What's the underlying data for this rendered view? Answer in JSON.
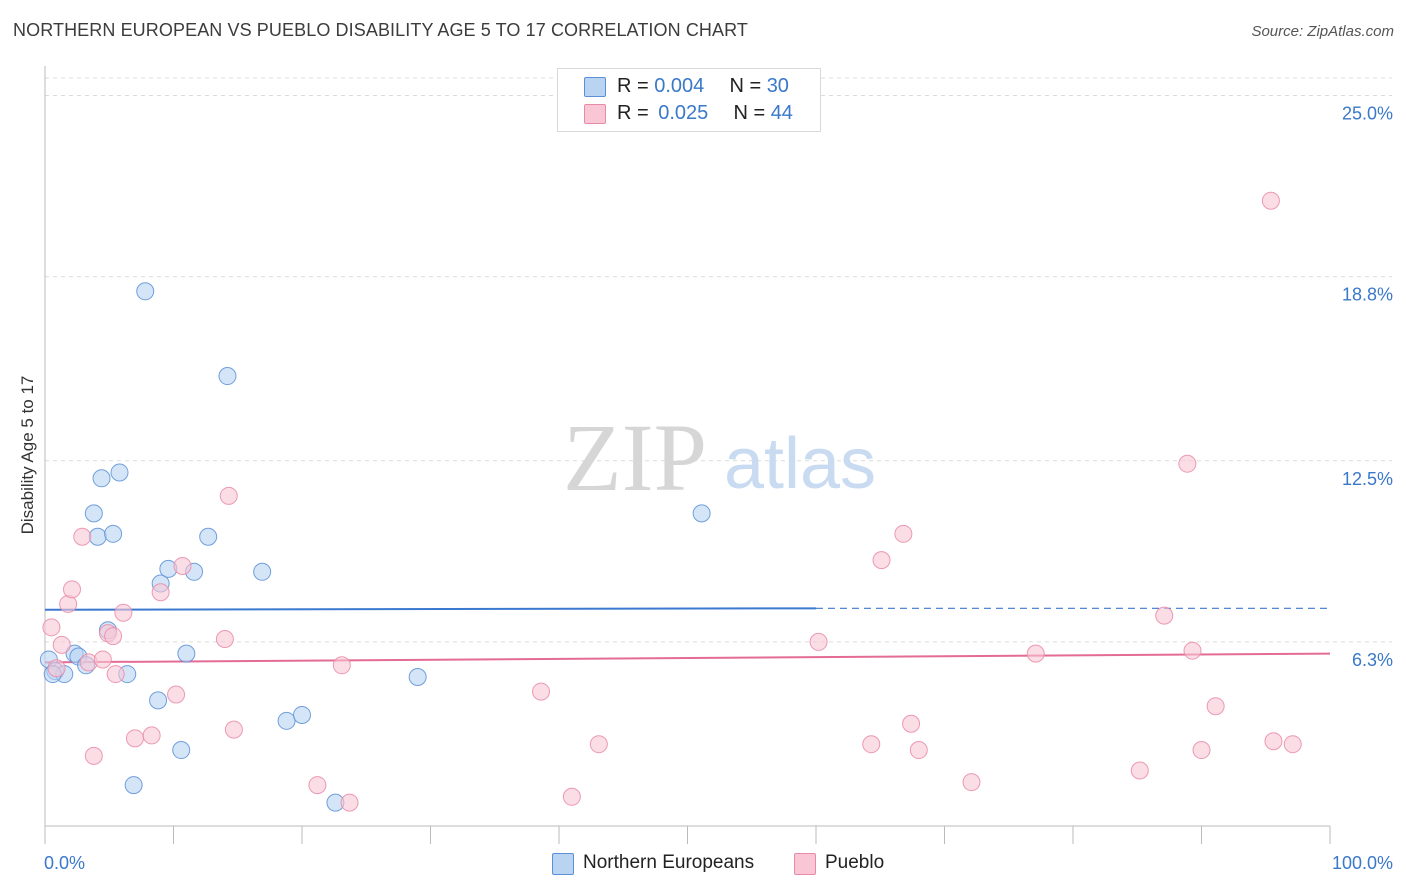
{
  "title": "NORTHERN EUROPEAN VS PUEBLO DISABILITY AGE 5 TO 17 CORRELATION CHART",
  "source": "Source: ZipAtlas.com",
  "watermark": {
    "zip": "ZIP",
    "atlas": "atlas"
  },
  "legend": {
    "rows": [
      {
        "r_label": "R =",
        "r_value": "0.004",
        "n_label": "N =",
        "n_value": "30"
      },
      {
        "r_label": "R =",
        "r_value": "0.025",
        "n_label": "N =",
        "n_value": "44"
      }
    ]
  },
  "bottom_legend": [
    "Northern Europeans",
    "Pueblo"
  ],
  "colors": {
    "blue_fill": "#b9d3f3",
    "blue_stroke": "#5b8fd6",
    "blue_line": "#3b78cf",
    "pink_fill": "#f9c6d6",
    "pink_stroke": "#e98aa8",
    "pink_line": "#e36b95",
    "tick_text": "#3a78c9",
    "grid": "#dcdcdc"
  },
  "chart_data": {
    "type": "scatter",
    "title": "NORTHERN EUROPEAN VS PUEBLO DISABILITY AGE 5 TO 17 CORRELATION CHART",
    "xlabel": "",
    "ylabel": "Disability Age 5 to 17",
    "xlim": [
      0,
      100
    ],
    "ylim": [
      0,
      25.6
    ],
    "x_tick_labels": [
      "0.0%",
      "100.0%"
    ],
    "y_ticks": [
      6.3,
      12.5,
      18.8,
      25.0
    ],
    "y_tick_labels": [
      "6.3%",
      "12.5%",
      "18.8%",
      "25.0%"
    ],
    "series": [
      {
        "name": "Northern Europeans",
        "R": 0.004,
        "N": 30,
        "trend": {
          "x0": 0,
          "y0": 7.4,
          "x1": 60,
          "y1": 7.45,
          "dashed_to_x": 100
        },
        "points": [
          [
            0.3,
            5.7
          ],
          [
            0.8,
            5.3
          ],
          [
            1.5,
            5.2
          ],
          [
            2.3,
            5.9
          ],
          [
            2.6,
            5.8
          ],
          [
            3.2,
            5.5
          ],
          [
            3.8,
            10.7
          ],
          [
            4.1,
            9.9
          ],
          [
            4.4,
            11.9
          ],
          [
            4.9,
            6.7
          ],
          [
            5.3,
            10.0
          ],
          [
            5.8,
            12.1
          ],
          [
            6.4,
            5.2
          ],
          [
            6.9,
            1.4
          ],
          [
            7.8,
            18.3
          ],
          [
            8.8,
            4.3
          ],
          [
            9.0,
            8.3
          ],
          [
            9.6,
            8.8
          ],
          [
            10.6,
            2.6
          ],
          [
            11.0,
            5.9
          ],
          [
            11.6,
            8.7
          ],
          [
            12.7,
            9.9
          ],
          [
            14.2,
            15.4
          ],
          [
            16.9,
            8.7
          ],
          [
            18.8,
            3.6
          ],
          [
            20.0,
            3.8
          ],
          [
            22.6,
            0.8
          ],
          [
            29.0,
            5.1
          ],
          [
            51.1,
            10.7
          ],
          [
            0.6,
            5.2
          ]
        ]
      },
      {
        "name": "Pueblo",
        "R": 0.025,
        "N": 44,
        "trend": {
          "x0": 0,
          "y0": 5.6,
          "x1": 100,
          "y1": 5.9
        },
        "points": [
          [
            0.5,
            6.8
          ],
          [
            0.9,
            5.4
          ],
          [
            1.3,
            6.2
          ],
          [
            1.8,
            7.6
          ],
          [
            2.1,
            8.1
          ],
          [
            2.9,
            9.9
          ],
          [
            3.4,
            5.6
          ],
          [
            3.8,
            2.4
          ],
          [
            4.5,
            5.7
          ],
          [
            4.9,
            6.6
          ],
          [
            5.3,
            6.5
          ],
          [
            5.5,
            5.2
          ],
          [
            6.1,
            7.3
          ],
          [
            7.0,
            3.0
          ],
          [
            8.3,
            3.1
          ],
          [
            9.0,
            8.0
          ],
          [
            10.2,
            4.5
          ],
          [
            10.7,
            8.9
          ],
          [
            14.0,
            6.4
          ],
          [
            14.3,
            11.3
          ],
          [
            14.7,
            3.3
          ],
          [
            21.2,
            1.4
          ],
          [
            23.1,
            5.5
          ],
          [
            23.7,
            0.8
          ],
          [
            38.6,
            4.6
          ],
          [
            41.0,
            1.0
          ],
          [
            43.1,
            2.8
          ],
          [
            60.2,
            6.3
          ],
          [
            64.3,
            2.8
          ],
          [
            65.1,
            9.1
          ],
          [
            66.8,
            10.0
          ],
          [
            67.4,
            3.5
          ],
          [
            68.0,
            2.6
          ],
          [
            72.1,
            1.5
          ],
          [
            77.1,
            5.9
          ],
          [
            85.2,
            1.9
          ],
          [
            87.1,
            7.2
          ],
          [
            88.9,
            12.4
          ],
          [
            89.3,
            6.0
          ],
          [
            90.0,
            2.6
          ],
          [
            91.1,
            4.1
          ],
          [
            95.4,
            21.4
          ],
          [
            95.6,
            2.9
          ],
          [
            97.1,
            2.8
          ]
        ]
      }
    ]
  }
}
